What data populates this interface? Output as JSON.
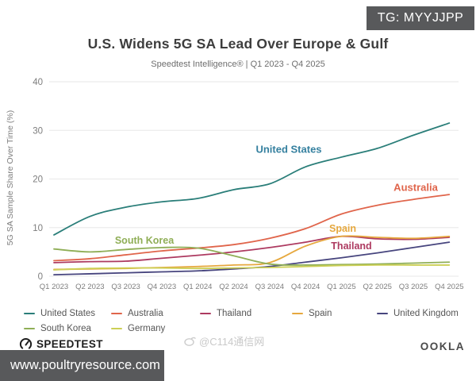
{
  "badge": {
    "text": "TG: MYYJJPP"
  },
  "header": {
    "title": "U.S. Widens 5G SA Lead Over Europe & Gulf",
    "subtitle": "Speedtest Intelligence® | Q1 2023 - Q4 2025"
  },
  "chart_data": {
    "type": "line",
    "title": "U.S. Widens 5G SA Lead Over Europe & Gulf",
    "subtitle": "Speedtest Intelligence® | Q1 2023 - Q4 2025",
    "xlabel": "",
    "ylabel": "5G SA Sample Share Over Time (%)",
    "ylim": [
      0,
      40
    ],
    "yticks": [
      0,
      10,
      20,
      30,
      40
    ],
    "grid": true,
    "legend_position": "bottom",
    "categories": [
      "Q1 2023",
      "Q2 2023",
      "Q3 2023",
      "Q4 2023",
      "Q1 2024",
      "Q2 2024",
      "Q3 2024",
      "Q4 2024",
      "Q1 2025",
      "Q2 2025",
      "Q3 2025",
      "Q4 2025"
    ],
    "series": [
      {
        "name": "United States",
        "color": "#2a7e79",
        "label_color": "#35809f",
        "values": [
          8.5,
          12.3,
          14.2,
          15.3,
          16.0,
          17.8,
          19.0,
          22.5,
          24.5,
          26.3,
          29.0,
          31.5
        ]
      },
      {
        "name": "Australia",
        "color": "#e0654b",
        "values": [
          3.2,
          3.6,
          4.4,
          5.2,
          5.8,
          6.5,
          7.8,
          9.8,
          12.8,
          14.6,
          15.8,
          16.8
        ]
      },
      {
        "name": "Thailand",
        "color": "#ad3a60",
        "values": [
          2.8,
          3.0,
          3.1,
          3.7,
          4.3,
          5.0,
          5.9,
          7.0,
          8.2,
          7.7,
          7.6,
          8.0
        ]
      },
      {
        "name": "Spain",
        "color": "#e6a83e",
        "values": [
          1.4,
          1.5,
          1.6,
          1.8,
          2.0,
          2.3,
          2.8,
          6.2,
          8.2,
          8.0,
          7.8,
          8.2
        ]
      },
      {
        "name": "United Kingdom",
        "color": "#47457e",
        "values": [
          0.3,
          0.5,
          0.7,
          0.9,
          1.1,
          1.5,
          2.0,
          2.9,
          3.8,
          4.8,
          5.9,
          7.0
        ]
      },
      {
        "name": "South Korea",
        "color": "#8fae56",
        "values": [
          5.6,
          5.0,
          5.5,
          5.9,
          5.8,
          4.2,
          2.5,
          2.3,
          2.4,
          2.5,
          2.7,
          2.9
        ]
      },
      {
        "name": "Germany",
        "color": "#cccf55",
        "values": [
          1.3,
          1.6,
          1.7,
          1.7,
          1.6,
          1.7,
          1.8,
          2.0,
          2.2,
          2.3,
          2.3,
          2.3
        ]
      }
    ]
  },
  "footer": {
    "speedtest": "SPEEDTEST",
    "watermark": "@C114通信网",
    "ookla": "OOKLA"
  },
  "bottom_bar": {
    "url": "www.poultryresource.com"
  }
}
